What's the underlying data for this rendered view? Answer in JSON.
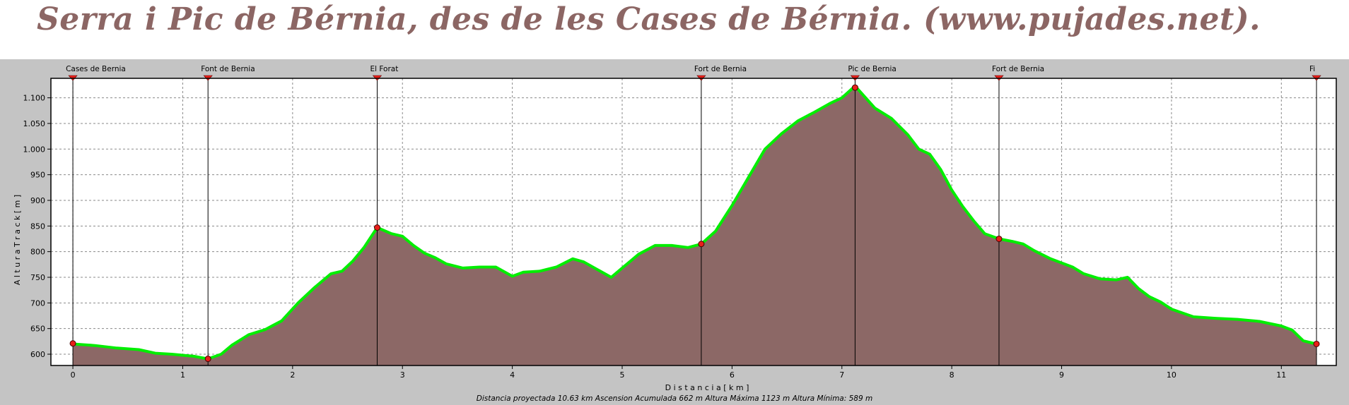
{
  "title": "Serra i Pic de Bérnia, des de les Cases de Bérnia. (www.pujades.net).",
  "colors": {
    "title_text": "#8c6664",
    "chart_background": "#c4c4c4",
    "plot_background": "#ffffff",
    "area_fill": "#8c6866",
    "track_line": "#00ee00",
    "waypoint_marker": "#e8201a",
    "grid": "#8a8a8a"
  },
  "chart_data": {
    "type": "area",
    "xlabel": "D i s t a n c i a   [ k m ]",
    "ylabel": "A l t u r a   T r a c k   [ m ]",
    "xlim": [
      -0.2,
      11.5
    ],
    "ylim": [
      578,
      1138
    ],
    "xticks": [
      0,
      1,
      2,
      3,
      4,
      5,
      6,
      7,
      8,
      9,
      10,
      11
    ],
    "yticks": [
      600,
      650,
      700,
      750,
      800,
      850,
      900,
      950,
      1000,
      1050,
      1100
    ],
    "ytick_labels": [
      "600",
      "650",
      "700",
      "750",
      "800",
      "850",
      "900",
      "950",
      "1.000",
      "1.050",
      "1.100"
    ],
    "grid": true,
    "series": [
      {
        "x": [
          0,
          0.2,
          0.4,
          0.6,
          0.75,
          0.9,
          1.0,
          1.1,
          1.23,
          1.35,
          1.45,
          1.6,
          1.75,
          1.9,
          2.05,
          2.2,
          2.35,
          2.45,
          2.55,
          2.65,
          2.77,
          2.9,
          3.0,
          3.1,
          3.2,
          3.3,
          3.4,
          3.55,
          3.7,
          3.85,
          4.0,
          4.1,
          4.25,
          4.4,
          4.55,
          4.65,
          4.8,
          4.9,
          5.0,
          5.15,
          5.3,
          5.45,
          5.6,
          5.72,
          5.85,
          6.0,
          6.15,
          6.3,
          6.45,
          6.6,
          6.75,
          6.9,
          7.0,
          7.12,
          7.3,
          7.45,
          7.6,
          7.7,
          7.8,
          7.9,
          8.0,
          8.1,
          8.2,
          8.3,
          8.43,
          8.55,
          8.65,
          8.75,
          8.9,
          9.0,
          9.1,
          9.2,
          9.35,
          9.5,
          9.6,
          9.7,
          9.8,
          9.9,
          10.0,
          10.2,
          10.4,
          10.6,
          10.8,
          11.0,
          11.1,
          11.2,
          11.32
        ],
        "y": [
          620,
          617,
          612,
          609,
          602,
          600,
          598,
          596,
          591,
          600,
          618,
          638,
          648,
          665,
          700,
          730,
          757,
          762,
          782,
          808,
          847,
          835,
          830,
          812,
          797,
          788,
          776,
          768,
          770,
          770,
          752,
          760,
          762,
          770,
          786,
          780,
          762,
          750,
          768,
          795,
          812,
          812,
          808,
          815,
          840,
          890,
          945,
          1000,
          1030,
          1055,
          1072,
          1090,
          1100,
          1123,
          1080,
          1060,
          1028,
          1000,
          990,
          960,
          920,
          888,
          860,
          835,
          825,
          820,
          815,
          802,
          786,
          778,
          770,
          757,
          747,
          745,
          750,
          728,
          712,
          702,
          688,
          673,
          670,
          668,
          664,
          655,
          647,
          626,
          620
        ]
      }
    ],
    "waypoints": [
      {
        "name": "Cases de Bernia",
        "x": 0,
        "y": 621
      },
      {
        "name": "Font de Bernia",
        "x": 1.23,
        "y": 591
      },
      {
        "name": "El Forat",
        "x": 2.77,
        "y": 847
      },
      {
        "name": "Fort de Bernia",
        "x": 5.72,
        "y": 815
      },
      {
        "name": "Pic de Bernia",
        "x": 7.12,
        "y": 1120
      },
      {
        "name": "Fort de Bernia",
        "x": 8.43,
        "y": 825
      },
      {
        "name": "Fi",
        "x": 11.32,
        "y": 620
      }
    ],
    "summary": "Distancia proyectada 10.63 km   Ascension Acumulada 662 m   Altura Máxima 1123 m   Altura Mínima: 589 m"
  }
}
